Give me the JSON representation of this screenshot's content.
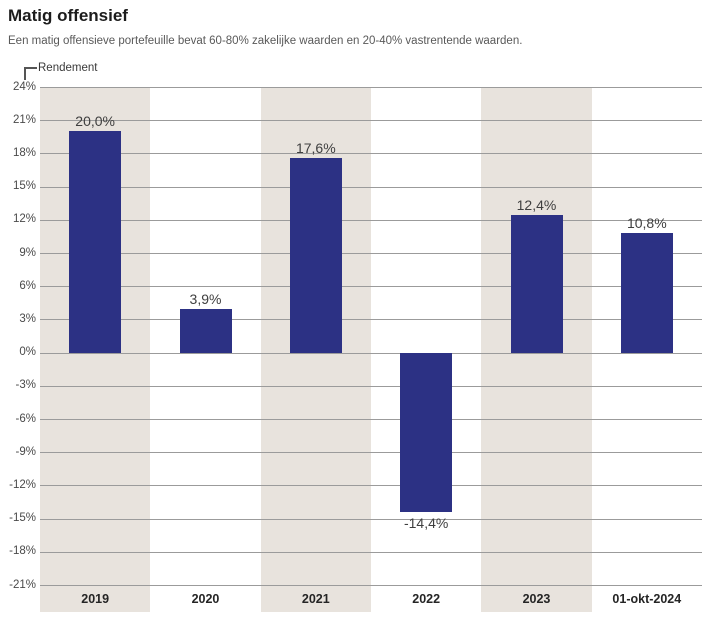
{
  "header": {
    "title": "Matig offensief",
    "subtitle": "Een matig offensieve portefeuille bevat 60-80% zakelijke waarden en 20-40% vastrentende waarden."
  },
  "chart_data": {
    "type": "bar",
    "title": "Matig offensief",
    "ylabel": "Rendement",
    "xlabel": "",
    "categories": [
      "2019",
      "2020",
      "2021",
      "2022",
      "2023",
      "01-okt-2024"
    ],
    "values": [
      20.0,
      3.9,
      17.6,
      -14.4,
      12.4,
      10.8
    ],
    "value_labels": [
      "20,0%",
      "3,9%",
      "17,6%",
      "-14,4%",
      "12,4%",
      "10,8%"
    ],
    "ylim": [
      -21,
      24
    ],
    "ytick_step": 3,
    "ytick_suffix": "%",
    "grid": true,
    "legend": "none",
    "shaded_columns": [
      0,
      2,
      4
    ],
    "colors": {
      "bar": "#2c3184",
      "column_band": "#e8e3dd",
      "gridline": "#9b9b9b",
      "value_label": "#3f3f3f",
      "tick_label": "#4a4a4a"
    }
  }
}
